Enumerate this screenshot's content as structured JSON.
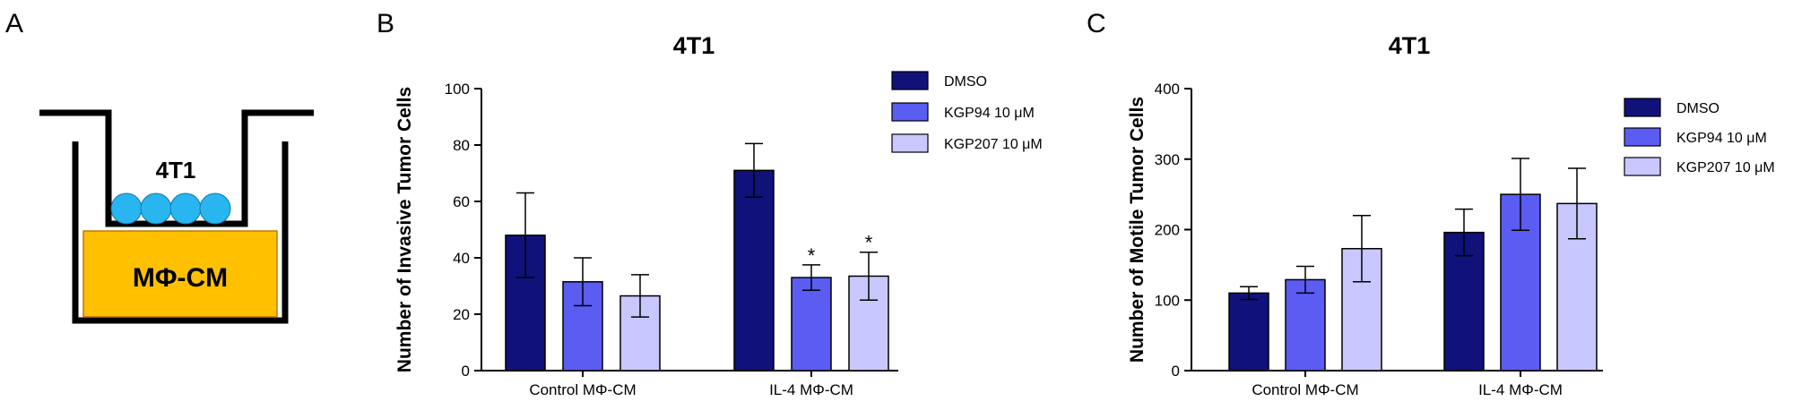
{
  "panel_a": {
    "letter": "A",
    "cells_label": "4T1",
    "medium_label": "MΦ-CM",
    "colors": {
      "cells": "#29b6f0",
      "medium": "#ffc000",
      "medium_border": "#c07800",
      "insert": "#000000"
    }
  },
  "colors": {
    "DMSO": "#10127a",
    "KGP94": "#5b5cf2",
    "KGP207": "#c8c8ff"
  },
  "chart_data": [
    {
      "panel": "B",
      "type": "bar",
      "title": "4T1",
      "ylabel": "Number of Invasive Tumor Cells",
      "xlabel": "",
      "categories": [
        "Control MΦ-CM",
        "IL-4 MΦ-CM"
      ],
      "ylim": [
        0,
        100
      ],
      "yticks": [
        0,
        20,
        40,
        60,
        80,
        100
      ],
      "grid": false,
      "legend_position": "top-right",
      "series": [
        {
          "name": "DMSO",
          "values": [
            48,
            71
          ],
          "errors": [
            15,
            9.5
          ],
          "color": "#10127a"
        },
        {
          "name": "KGP94 10 μM",
          "values": [
            31.5,
            33
          ],
          "errors": [
            8.5,
            4.5
          ],
          "color": "#5b5cf2"
        },
        {
          "name": "KGP207 10 μM",
          "values": [
            26.5,
            33.5
          ],
          "errors": [
            7.5,
            8.5
          ],
          "color": "#c8c8ff"
        }
      ],
      "annotations": [
        {
          "category": "IL-4 MΦ-CM",
          "series": "KGP94 10 μM",
          "text": "*"
        },
        {
          "category": "IL-4 MΦ-CM",
          "series": "KGP207 10 μM",
          "text": "*"
        }
      ]
    },
    {
      "panel": "C",
      "type": "bar",
      "title": "4T1",
      "ylabel": "Number of Motile Tumor Cells",
      "xlabel": "",
      "categories": [
        "Control MΦ-CM",
        "IL-4 MΦ-CM"
      ],
      "ylim": [
        0,
        400
      ],
      "yticks": [
        0,
        100,
        200,
        300,
        400
      ],
      "grid": false,
      "legend_position": "right",
      "series": [
        {
          "name": "DMSO",
          "values": [
            110,
            196
          ],
          "errors": [
            9,
            33
          ],
          "color": "#10127a"
        },
        {
          "name": "KGP94 10 μM",
          "values": [
            129,
            250
          ],
          "errors": [
            19,
            51
          ],
          "color": "#5b5cf2"
        },
        {
          "name": "KGP207 10 μM",
          "values": [
            173,
            237
          ],
          "errors": [
            47,
            50
          ],
          "color": "#c8c8ff"
        }
      ],
      "annotations": []
    }
  ]
}
